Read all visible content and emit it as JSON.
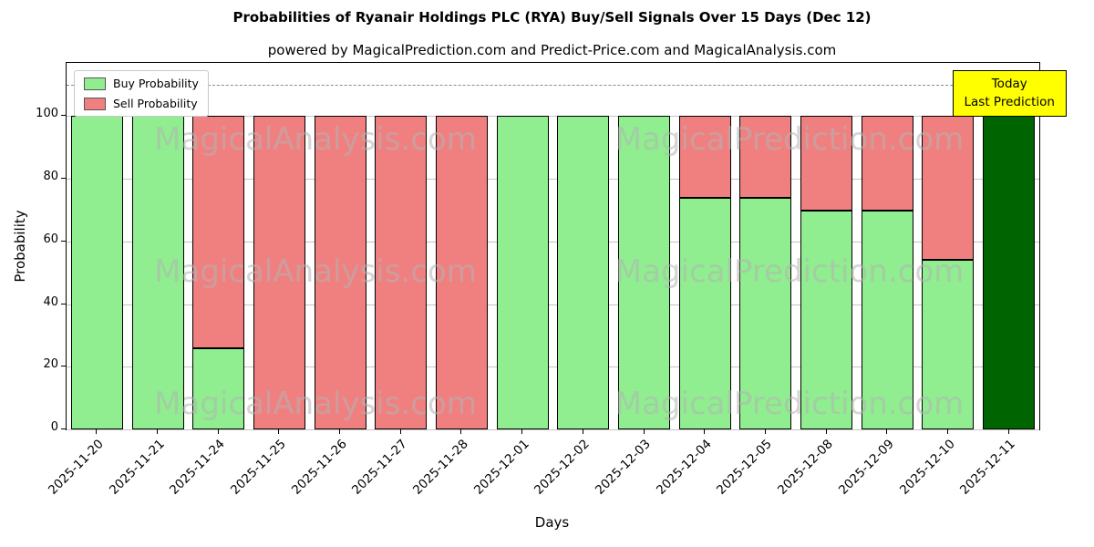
{
  "title": "Probabilities of Ryanair Holdings PLC (RYA) Buy/Sell Signals Over 15 Days (Dec 12)",
  "subtitle": "powered by MagicalPrediction.com and Predict-Price.com and MagicalAnalysis.com",
  "xlabel": "Days",
  "ylabel": "Probability",
  "legend": {
    "buy_label": "Buy Probability",
    "sell_label": "Sell Probability"
  },
  "annotation": {
    "line1": "Today",
    "line2": "Last Prediction"
  },
  "watermarks": [
    "MagicalAnalysis.com",
    "MagicalPrediction.com"
  ],
  "colors": {
    "buy": "#90EE90",
    "sell": "#F08080",
    "today_bar": "#006400",
    "annotation_bg": "#ffff00",
    "grid": "#c4c4c4",
    "dashed": "#8a8a8a",
    "edge": "#000000"
  },
  "chart_data": {
    "type": "bar",
    "stacked": true,
    "title": "Probabilities of Ryanair Holdings PLC (RYA) Buy/Sell Signals Over 15 Days (Dec 12)",
    "xlabel": "Days",
    "ylabel": "Probability",
    "grid": true,
    "legend_position": "upper left",
    "categories": [
      "2025-11-20",
      "2025-11-21",
      "2025-11-24",
      "2025-11-25",
      "2025-11-26",
      "2025-11-27",
      "2025-11-28",
      "2025-12-01",
      "2025-12-02",
      "2025-12-03",
      "2025-12-04",
      "2025-12-05",
      "2025-12-08",
      "2025-12-09",
      "2025-12-10",
      "2025-12-11"
    ],
    "series": [
      {
        "name": "Buy Probability",
        "values": [
          100,
          100,
          26,
          0,
          0,
          0,
          0,
          100,
          100,
          100,
          74,
          74,
          70,
          70,
          54,
          100
        ]
      },
      {
        "name": "Sell Probability",
        "values": [
          0,
          0,
          74,
          100,
          100,
          100,
          100,
          0,
          0,
          0,
          26,
          26,
          30,
          30,
          46,
          0
        ]
      }
    ],
    "today_index": 15,
    "yticks": [
      0,
      20,
      40,
      60,
      80,
      100
    ],
    "ylim": [
      0,
      117
    ],
    "dashed_line_y": 110
  }
}
